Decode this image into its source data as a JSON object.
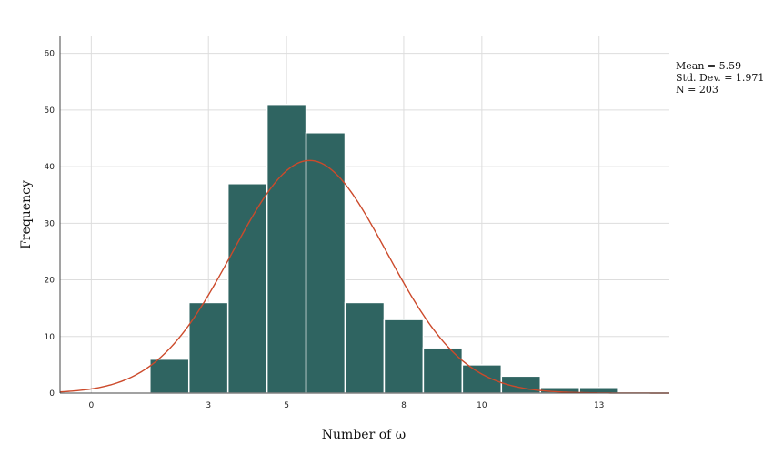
{
  "chart_data": {
    "type": "bar",
    "subtype": "histogram",
    "xlabel": "Number of ω",
    "ylabel": "Frequency",
    "xlim": [
      -0.8,
      14.8
    ],
    "ylim": [
      0,
      63
    ],
    "x_ticks": [
      0,
      3,
      5,
      8,
      10,
      13
    ],
    "y_ticks": [
      0,
      10,
      20,
      30,
      40,
      50,
      60
    ],
    "grid": true,
    "bins": [
      {
        "start": 1.5,
        "end": 2.5,
        "value": 6
      },
      {
        "start": 2.5,
        "end": 3.5,
        "value": 16
      },
      {
        "start": 3.5,
        "end": 4.5,
        "value": 37
      },
      {
        "start": 4.5,
        "end": 5.5,
        "value": 51
      },
      {
        "start": 5.5,
        "end": 6.5,
        "value": 46
      },
      {
        "start": 6.5,
        "end": 7.5,
        "value": 16
      },
      {
        "start": 7.5,
        "end": 8.5,
        "value": 13
      },
      {
        "start": 8.5,
        "end": 9.5,
        "value": 8
      },
      {
        "start": 9.5,
        "end": 10.5,
        "value": 5
      },
      {
        "start": 10.5,
        "end": 11.5,
        "value": 3
      },
      {
        "start": 11.5,
        "end": 12.5,
        "value": 1
      },
      {
        "start": 12.5,
        "end": 13.5,
        "value": 1
      }
    ],
    "normal_curve": {
      "mean": 5.59,
      "std": 1.971,
      "n": 203,
      "bin_width": 1
    },
    "stats": {
      "mean_label": "Mean = 5.59",
      "std_label": "Std. Dev. = 1.971",
      "n_label": "N = 203"
    },
    "colors": {
      "bar": "#2f6461",
      "bar_edge": "#ffffff",
      "curve": "#cc4a2b",
      "grid": "#dddddd",
      "axis": "#444444"
    }
  }
}
